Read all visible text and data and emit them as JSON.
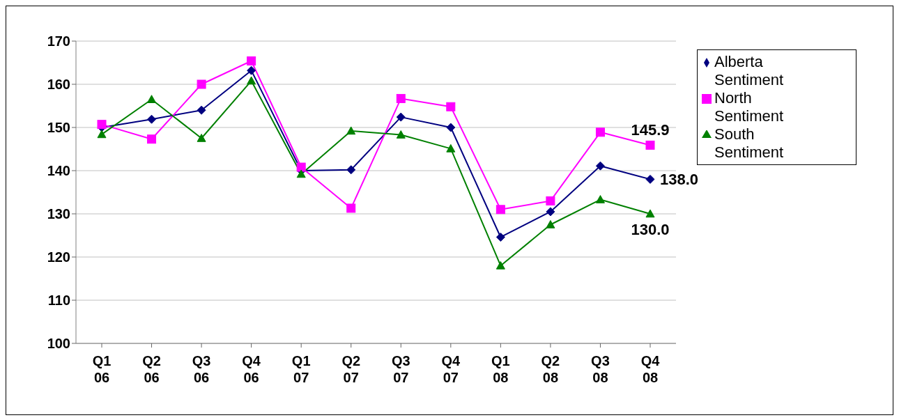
{
  "chart_data": {
    "type": "line",
    "categories": [
      "Q1 06",
      "Q2 06",
      "Q3 06",
      "Q4 06",
      "Q1 07",
      "Q2 07",
      "Q3 07",
      "Q4 07",
      "Q1 08",
      "Q2 08",
      "Q3 08",
      "Q4 08"
    ],
    "series": [
      {
        "name": "Alberta Sentiment",
        "color": "#000080",
        "marker": "diamond",
        "values": [
          150,
          151.9,
          154,
          163.2,
          140,
          140.2,
          152.4,
          150,
          124.6,
          130.5,
          141.1,
          138.0
        ],
        "value_labels": [
          null,
          null,
          null,
          null,
          null,
          null,
          null,
          null,
          null,
          null,
          null,
          "138.0"
        ]
      },
      {
        "name": "North Sentiment",
        "color": "#ff00ff",
        "marker": "square",
        "values": [
          150.7,
          147.3,
          160,
          165.4,
          140.8,
          131.3,
          156.7,
          154.8,
          131,
          133,
          148.9,
          145.9
        ],
        "value_labels": [
          null,
          null,
          null,
          null,
          null,
          null,
          null,
          null,
          null,
          null,
          null,
          "145.9"
        ]
      },
      {
        "name": "South Sentiment",
        "color": "#008000",
        "marker": "triangle",
        "values": [
          148.4,
          156.5,
          147.5,
          160.8,
          139.2,
          149.2,
          148.3,
          145.1,
          118,
          127.5,
          133.3,
          130.0
        ],
        "value_labels": [
          null,
          null,
          null,
          null,
          null,
          null,
          null,
          null,
          null,
          null,
          null,
          "130.0"
        ]
      }
    ],
    "ylim": [
      100,
      170
    ],
    "yticks": [
      100,
      110,
      120,
      130,
      140,
      150,
      160,
      170
    ],
    "grid": "y",
    "legend": "top right",
    "line_style": "solid"
  }
}
